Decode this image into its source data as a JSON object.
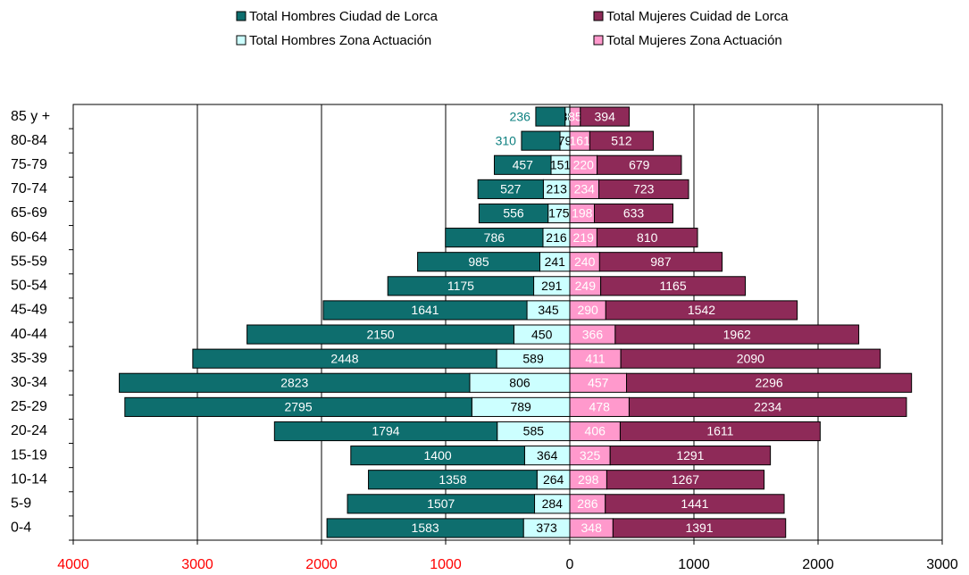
{
  "chart_data": {
    "type": "pyramid",
    "categories": [
      "0-4",
      "5-9",
      "10-14",
      "15-19",
      "20-24",
      "25-29",
      "30-34",
      "35-39",
      "40-44",
      "45-49",
      "50-54",
      "55-59",
      "60-64",
      "65-69",
      "70-74",
      "75-79",
      "80-84",
      "85 y +"
    ],
    "series": [
      {
        "name": "Total Hombres  Zona Actuación",
        "color": "#ccffff",
        "values": [
          -373,
          -284,
          -264,
          -364,
          -585,
          -789,
          -806,
          -589,
          -450,
          -345,
          -291,
          -241,
          -216,
          -175,
          -213,
          -151,
          -79,
          -38
        ],
        "value_labels": [
          "373",
          "284",
          "264",
          "364",
          "585",
          "789",
          "806",
          "589",
          "450",
          "345",
          "291",
          "241",
          "216",
          "175",
          "213",
          "151",
          "79",
          "38"
        ]
      },
      {
        "name": "Total Hombres Ciudad de Lorca",
        "color": "#0e6e6e",
        "values": [
          -1583,
          -1507,
          -1358,
          -1400,
          -1794,
          -2795,
          -2823,
          -2448,
          -2150,
          -1641,
          -1175,
          -985,
          -786,
          -556,
          -527,
          -457,
          -310,
          -236
        ],
        "value_labels": [
          "1583",
          "1507",
          "1358",
          "1400",
          "1794",
          "2795",
          "2823",
          "2448",
          "2150",
          "1641",
          "1175",
          "985",
          "786",
          "556",
          "527",
          "457",
          "310",
          "236"
        ]
      },
      {
        "name": "Total Mujeres  Zona Actuación",
        "color": "#ff99cc",
        "values": [
          348,
          286,
          298,
          325,
          406,
          478,
          457,
          411,
          366,
          290,
          249,
          240,
          219,
          198,
          234,
          220,
          161,
          85
        ]
      },
      {
        "name": "Total Mujeres Cuidad de Lorca",
        "color": "#8e2a58",
        "values": [
          1391,
          1441,
          1267,
          1291,
          1611,
          2234,
          2296,
          2090,
          1962,
          1542,
          1165,
          987,
          810,
          633,
          723,
          679,
          512,
          394
        ]
      }
    ],
    "xlim": [
      -4000,
      3000
    ],
    "xticks": [
      {
        "value": -4000,
        "label": "4000"
      },
      {
        "value": -3000,
        "label": "3000"
      },
      {
        "value": -2000,
        "label": "2000"
      },
      {
        "value": -1000,
        "label": "1000"
      },
      0,
      1000,
      2000,
      3000
    ],
    "grid": true
  }
}
